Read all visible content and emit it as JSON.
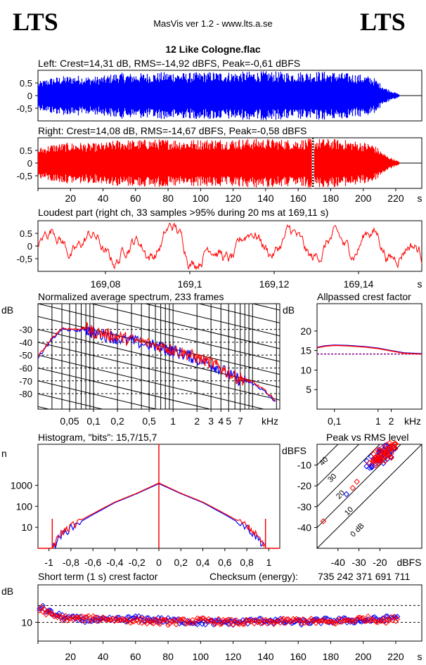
{
  "header": {
    "logo_left": "LTS",
    "logo_right": "LTS",
    "app_title": "MasVis ver 1.2 - www.lts.a.se",
    "file_title": "12 Like Cologne.flac"
  },
  "colors": {
    "left": "#0000ff",
    "right": "#ff0000",
    "grid": "#000000"
  },
  "chart_data": [
    {
      "id": "left_wave",
      "type": "area",
      "title": "Left: Crest=14,31 dB, RMS=-14,92 dBFS, Peak=-0,61 dBFS",
      "y_ticks": [
        "0.5",
        "0",
        "-0,5"
      ],
      "ylim": [
        -1,
        1
      ],
      "xlim": [
        0,
        236
      ],
      "duration_s": 222,
      "color": "#0000ff",
      "envelope": [
        0.55,
        0.72,
        0.78,
        0.8,
        0.75,
        0.8,
        0.92,
        0.88,
        0.9,
        0.92,
        0.95,
        0.9,
        0.93,
        0.95,
        0.94,
        0.95,
        0.96,
        0.97,
        0.95,
        0.94,
        0.96,
        0.97,
        0.95,
        0.9,
        0.85,
        0.75,
        0.3,
        0.05
      ]
    },
    {
      "id": "right_wave",
      "type": "area",
      "title": "Right: Crest=14,08 dB, RMS=-14,67 dBFS, Peak=-0,58 dBFS",
      "y_ticks": [
        "0.5",
        "0",
        "-0,5"
      ],
      "ylim": [
        -1,
        1
      ],
      "xlim": [
        0,
        236
      ],
      "duration_s": 222,
      "marker_s": 169.1,
      "color": "#ff0000",
      "x_ticks": [
        "20",
        "40",
        "60",
        "80",
        "100",
        "120",
        "140",
        "160",
        "180",
        "200",
        "220"
      ],
      "x_tick_values": [
        20,
        40,
        60,
        80,
        100,
        120,
        140,
        160,
        180,
        200,
        220
      ],
      "x_unit": "s",
      "envelope": [
        0.6,
        0.75,
        0.8,
        0.82,
        0.78,
        0.82,
        0.93,
        0.92,
        0.94,
        0.95,
        0.96,
        0.92,
        0.94,
        0.96,
        0.95,
        0.96,
        0.97,
        0.97,
        0.95,
        0.94,
        0.96,
        0.97,
        0.96,
        0.92,
        0.86,
        0.78,
        0.32,
        0.05
      ]
    },
    {
      "id": "loudest",
      "type": "line",
      "title": "Loudest part (right ch, 33 samples >95% during 20 ms at 169,11 s)",
      "y_ticks": [
        "0.5",
        "0",
        "-0,5"
      ],
      "ylim": [
        -1,
        1
      ],
      "xlim": [
        169.064,
        169.155
      ],
      "x_ticks": [
        "169,08",
        "169,1",
        "169,12",
        "169,14"
      ],
      "x_tick_values": [
        169.08,
        169.1,
        169.12,
        169.14
      ],
      "x_unit": "s",
      "color": "#ff0000"
    },
    {
      "id": "spectrum",
      "type": "line",
      "title": "Normalized average spectrum, 233 frames",
      "ylabel": "dB",
      "y_ticks": [
        "-30",
        "-40",
        "-50",
        "-60",
        "-70",
        "-80"
      ],
      "y_tick_values": [
        -30,
        -40,
        -50,
        -60,
        -70,
        -80
      ],
      "ylim": [
        -92,
        -10
      ],
      "x_ticks": [
        "0,05",
        "0,1",
        "0,2",
        "0,5",
        "1",
        "2",
        "3",
        "4",
        "5",
        "7"
      ],
      "x_tick_values": [
        0.05,
        0.1,
        0.2,
        0.5,
        1,
        2,
        3,
        4,
        5,
        7
      ],
      "x_unit": "kHz",
      "xscale": "log",
      "xlim": [
        0.02,
        22
      ],
      "series": [
        {
          "color": "#0000ff",
          "points": [
            [
              0.02,
              -52
            ],
            [
              0.03,
              -38
            ],
            [
              0.04,
              -30
            ],
            [
              0.06,
              -31
            ],
            [
              0.08,
              -30
            ],
            [
              0.1,
              -33
            ],
            [
              0.15,
              -35
            ],
            [
              0.2,
              -37
            ],
            [
              0.3,
              -39
            ],
            [
              0.5,
              -42
            ],
            [
              0.8,
              -45
            ],
            [
              1,
              -47
            ],
            [
              1.5,
              -50
            ],
            [
              2,
              -53
            ],
            [
              3,
              -57
            ],
            [
              4,
              -61
            ],
            [
              6,
              -68
            ],
            [
              8,
              -70
            ],
            [
              10,
              -72
            ],
            [
              14,
              -78
            ],
            [
              20,
              -87
            ]
          ]
        },
        {
          "color": "#ff0000",
          "points": [
            [
              0.02,
              -51
            ],
            [
              0.03,
              -37
            ],
            [
              0.04,
              -29
            ],
            [
              0.06,
              -30
            ],
            [
              0.08,
              -29
            ],
            [
              0.1,
              -32
            ],
            [
              0.15,
              -34
            ],
            [
              0.2,
              -36
            ],
            [
              0.3,
              -38
            ],
            [
              0.5,
              -41
            ],
            [
              0.8,
              -44
            ],
            [
              1,
              -46
            ],
            [
              1.5,
              -49
            ],
            [
              2,
              -52
            ],
            [
              3,
              -56
            ],
            [
              4,
              -60
            ],
            [
              6,
              -67
            ],
            [
              8,
              -69
            ],
            [
              10,
              -71
            ],
            [
              14,
              -77
            ],
            [
              20,
              -86
            ]
          ]
        }
      ]
    },
    {
      "id": "crest_allpass",
      "type": "line",
      "title": "Allpassed crest factor",
      "ylabel": "dB",
      "y_ticks": [
        "20",
        "15",
        "10",
        "5"
      ],
      "y_tick_values": [
        20,
        15,
        10,
        5
      ],
      "ylim": [
        0,
        27
      ],
      "x_ticks": [
        "0,1",
        "1",
        "2"
      ],
      "x_tick_values": [
        0.1,
        1,
        2
      ],
      "x_unit": "kHz",
      "xscale": "log",
      "xlim": [
        0.04,
        10
      ],
      "reference_db": 14.1,
      "series": [
        {
          "color": "#0000ff",
          "points": [
            [
              0.04,
              15.8
            ],
            [
              0.06,
              16.2
            ],
            [
              0.1,
              16.4
            ],
            [
              0.2,
              16.3
            ],
            [
              0.5,
              16.0
            ],
            [
              1,
              15.6
            ],
            [
              2,
              15.0
            ],
            [
              4,
              14.4
            ],
            [
              10,
              14.2
            ]
          ]
        },
        {
          "color": "#ff0000",
          "points": [
            [
              0.04,
              15.7
            ],
            [
              0.06,
              16.1
            ],
            [
              0.1,
              16.3
            ],
            [
              0.2,
              16.2
            ],
            [
              0.5,
              15.9
            ],
            [
              1,
              15.5
            ],
            [
              2,
              14.9
            ],
            [
              4,
              14.3
            ],
            [
              10,
              14.1
            ]
          ]
        }
      ]
    },
    {
      "id": "histogram",
      "type": "line",
      "title": "Histogram, \"bits\": 15,7/15,7",
      "ylabel": "n",
      "y_ticks": [
        "1000",
        "100",
        "10"
      ],
      "y_tick_values": [
        1000,
        100,
        10
      ],
      "yscale": "log",
      "ylim": [
        1,
        90000
      ],
      "x_ticks": [
        "-1",
        "-0,8",
        "-0,6",
        "-0,4",
        "-0,2",
        "0",
        "0,2",
        "0,4",
        "0,6",
        "0,8",
        "1"
      ],
      "x_tick_values": [
        -1,
        -0.8,
        -0.6,
        -0.4,
        -0.2,
        0,
        0.2,
        0.4,
        0.6,
        0.8,
        1
      ],
      "xlim": [
        -1.1,
        1.1
      ],
      "series": [
        {
          "color": "#0000ff",
          "points": [
            [
              -0.97,
              1
            ],
            [
              -0.9,
              4
            ],
            [
              -0.8,
              10
            ],
            [
              -0.6,
              40
            ],
            [
              -0.4,
              150
            ],
            [
              -0.2,
              400
            ],
            [
              0,
              1200
            ],
            [
              0.2,
              400
            ],
            [
              0.4,
              150
            ],
            [
              0.6,
              40
            ],
            [
              0.8,
              10
            ],
            [
              0.9,
              3
            ],
            [
              0.97,
              1
            ]
          ]
        },
        {
          "color": "#ff0000",
          "points": [
            [
              -0.97,
              1
            ],
            [
              -0.9,
              5
            ],
            [
              -0.8,
              12
            ],
            [
              -0.6,
              45
            ],
            [
              -0.4,
              160
            ],
            [
              -0.2,
              420
            ],
            [
              0,
              1300
            ],
            [
              0.2,
              420
            ],
            [
              0.4,
              160
            ],
            [
              0.6,
              45
            ],
            [
              0.8,
              12
            ],
            [
              0.9,
              4
            ],
            [
              0.97,
              1
            ]
          ]
        }
      ]
    },
    {
      "id": "peak_rms",
      "type": "scatter",
      "title": "Peak vs RMS level",
      "ylabel": "dBFS",
      "xlabel": "dBFS",
      "y_ticks": [
        "-10",
        "-20",
        "-30",
        "-40"
      ],
      "y_tick_values": [
        -10,
        -20,
        -30,
        -40
      ],
      "ylim": [
        -50,
        0
      ],
      "x_ticks": [
        "-40",
        "-30",
        "-20"
      ],
      "x_tick_values": [
        -40,
        -30,
        -20
      ],
      "xlim": [
        -50,
        0
      ],
      "diag_labels": [
        "40",
        "30",
        "20",
        "10",
        "0 dB"
      ],
      "series": [
        {
          "color": "#0000ff",
          "points": [
            [
              -36,
              -24
            ],
            [
              -24,
              -10
            ],
            [
              -20,
              -7
            ],
            [
              -18,
              -5
            ],
            [
              -16,
              -3
            ],
            [
              -15,
              -3
            ],
            [
              -17,
              -4
            ],
            [
              -19,
              -5
            ],
            [
              -22,
              -8
            ]
          ]
        },
        {
          "color": "#ff0000",
          "points": [
            [
              -47,
              -37
            ],
            [
              -33,
              -21
            ],
            [
              -31,
              -18
            ],
            [
              -25,
              -9
            ],
            [
              -21,
              -7
            ],
            [
              -19,
              -5
            ],
            [
              -17,
              -4
            ],
            [
              -16,
              -3
            ],
            [
              -15,
              -2
            ],
            [
              -14,
              -1
            ],
            [
              -18,
              -4
            ],
            [
              -20,
              -6
            ],
            [
              -23,
              -8
            ]
          ]
        }
      ]
    },
    {
      "id": "short_crest",
      "type": "scatter",
      "title": "Short term (1 s) crest factor",
      "checksum_label": "Checksum (energy):",
      "checksum_value": "735 242 371 691 711",
      "ylabel": "dB",
      "y_ticks": [
        "10"
      ],
      "y_tick_values": [
        10
      ],
      "ylim": [
        0,
        30
      ],
      "x_ticks": [
        "20",
        "40",
        "60",
        "80",
        "100",
        "120",
        "140",
        "160",
        "180",
        "200",
        "220"
      ],
      "x_tick_values": [
        20,
        40,
        60,
        80,
        100,
        120,
        140,
        160,
        180,
        200,
        220
      ],
      "x_unit": "s",
      "xlim": [
        0,
        236
      ],
      "reference_lines": [
        10,
        19
      ],
      "series": [
        {
          "color": "#0000ff",
          "points": [
            [
              2,
              18
            ],
            [
              6,
              16
            ],
            [
              10,
              14
            ],
            [
              20,
              12
            ],
            [
              40,
              11
            ],
            [
              60,
              12
            ],
            [
              80,
              11
            ],
            [
              100,
              10
            ],
            [
              120,
              10
            ],
            [
              140,
              11
            ],
            [
              160,
              10
            ],
            [
              180,
              11
            ],
            [
              200,
              11
            ],
            [
              215,
              12
            ],
            [
              220,
              13
            ]
          ]
        },
        {
          "color": "#ff0000",
          "points": [
            [
              2,
              17
            ],
            [
              6,
              15
            ],
            [
              10,
              13
            ],
            [
              20,
              12
            ],
            [
              40,
              12
            ],
            [
              60,
              11
            ],
            [
              80,
              10
            ],
            [
              100,
              11
            ],
            [
              120,
              10
            ],
            [
              140,
              10
            ],
            [
              160,
              11
            ],
            [
              180,
              10
            ],
            [
              200,
              12
            ],
            [
              215,
              11
            ],
            [
              220,
              12
            ]
          ]
        }
      ]
    }
  ]
}
